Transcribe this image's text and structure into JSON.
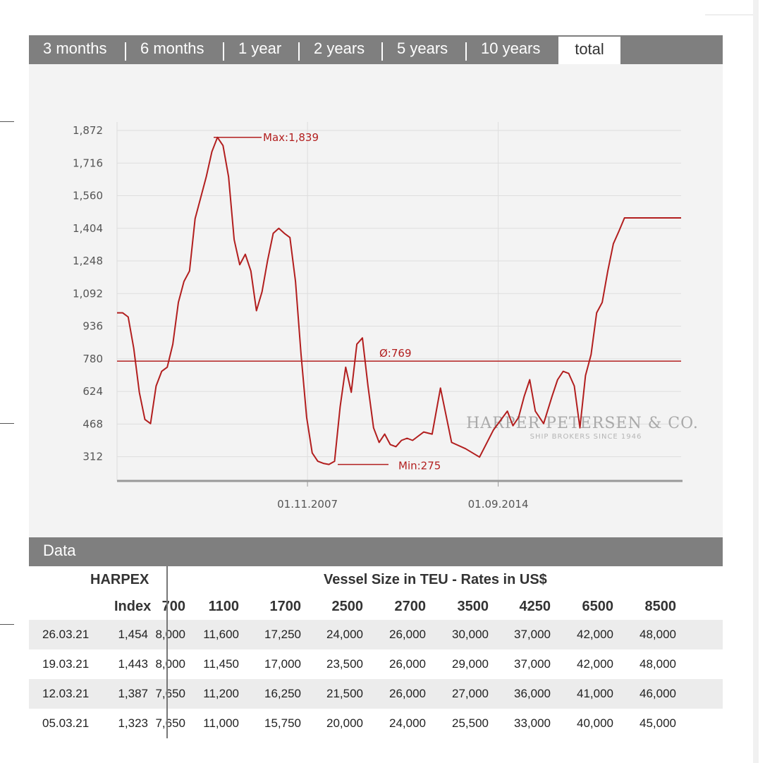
{
  "tabs": [
    {
      "label": "3 months"
    },
    {
      "label": "6 months"
    },
    {
      "label": "1 year"
    },
    {
      "label": "2 years"
    },
    {
      "label": "5 years"
    },
    {
      "label": "10 years"
    },
    {
      "label": "total",
      "active": true
    }
  ],
  "chart_data": {
    "type": "line",
    "y_ticks": [
      1872,
      1716,
      1560,
      1404,
      1248,
      1092,
      936,
      780,
      624,
      468,
      312
    ],
    "y_tick_labels": [
      "1,872",
      "1,716",
      "1,560",
      "1,404",
      "1,248",
      "1,092",
      "936",
      "780",
      "624",
      "468",
      "312"
    ],
    "x_tick_labels": [
      "01.11.2007",
      "01.09.2014"
    ],
    "ylim": [
      196,
      1872
    ],
    "grid": true,
    "annotations": {
      "max_label": "Max:1,839",
      "max": 1839,
      "min_label": "Min:275",
      "min": 275,
      "mean_label": "Ø:769",
      "mean": 769
    },
    "watermark": {
      "line1": "HARPER PETERSEN & CO.",
      "line2": "SHIP BROKERS SINCE 1946"
    },
    "colors": {
      "line": "#b21e1e",
      "grid": "#dedede",
      "axis": "#999999"
    },
    "series": [
      {
        "x": [
          2001.0,
          2001.2,
          2001.4,
          2001.6,
          2001.8,
          2002.0,
          2002.2,
          2002.4,
          2002.6,
          2002.8,
          2003.0,
          2003.2,
          2003.4,
          2003.6,
          2003.8,
          2004.0,
          2004.2,
          2004.4,
          2004.6,
          2004.8,
          2005.0,
          2005.2,
          2005.4,
          2005.6,
          2005.8,
          2006.0,
          2006.2,
          2006.4,
          2006.6,
          2006.8,
          2007.0,
          2007.2,
          2007.4,
          2007.6,
          2007.8,
          2008.0,
          2008.2,
          2008.4,
          2008.6,
          2008.8,
          2009.0,
          2009.2,
          2009.4,
          2009.6,
          2009.8,
          2010.0,
          2010.2,
          2010.4,
          2010.6,
          2010.8,
          2011.0,
          2011.2,
          2011.4,
          2011.6,
          2011.8,
          2012.0,
          2012.3,
          2012.6,
          2013.0,
          2013.5,
          2014.0,
          2014.5,
          2015.0,
          2015.2,
          2015.4,
          2015.6,
          2015.8,
          2016.0,
          2016.3,
          2016.6,
          2016.8,
          2017.0,
          2017.2,
          2017.4,
          2017.6,
          2017.8,
          2018.0,
          2018.2,
          2018.4,
          2018.6,
          2018.8,
          2019.0,
          2019.2,
          2019.4,
          2019.6,
          2019.8,
          2020.0,
          2020.2,
          2020.4,
          2020.6,
          2020.8,
          2021.0,
          2021.23
        ],
        "y": [
          1000,
          1000,
          980,
          830,
          620,
          490,
          470,
          650,
          720,
          740,
          850,
          1050,
          1150,
          1200,
          1450,
          1550,
          1650,
          1770,
          1839,
          1800,
          1650,
          1350,
          1230,
          1280,
          1200,
          1010,
          1100,
          1250,
          1380,
          1404,
          1380,
          1360,
          1150,
          800,
          500,
          330,
          290,
          280,
          275,
          290,
          550,
          740,
          620,
          850,
          880,
          650,
          450,
          380,
          420,
          370,
          360,
          390,
          400,
          390,
          410,
          430,
          420,
          640,
          380,
          350,
          310,
          440,
          530,
          460,
          500,
          600,
          680,
          530,
          470,
          600,
          680,
          720,
          710,
          650,
          450,
          700,
          800,
          1000,
          1050,
          1200,
          1330,
          1390,
          1454,
          1454,
          1454,
          1454,
          1454,
          1454,
          1454,
          1454,
          1454,
          1454,
          1454
        ]
      }
    ]
  },
  "data_section": {
    "title": "Data",
    "col_group_harpex": "HARPEX",
    "col_group_vessels": "Vessel Size in TEU - Rates in US$",
    "col_index": "Index",
    "teu_cols": [
      "700",
      "1100",
      "1700",
      "2500",
      "2700",
      "3500",
      "4250",
      "6500",
      "8500"
    ],
    "rows": [
      {
        "date": "26.03.21",
        "index": "1,454",
        "rates": [
          "8,000",
          "11,600",
          "17,250",
          "24,000",
          "26,000",
          "30,000",
          "37,000",
          "42,000",
          "48,000"
        ]
      },
      {
        "date": "19.03.21",
        "index": "1,443",
        "rates": [
          "8,000",
          "11,450",
          "17,000",
          "23,500",
          "26,000",
          "29,000",
          "37,000",
          "42,000",
          "48,000"
        ]
      },
      {
        "date": "12.03.21",
        "index": "1,387",
        "rates": [
          "7,650",
          "11,200",
          "16,250",
          "21,500",
          "26,000",
          "27,000",
          "36,000",
          "41,000",
          "46,000"
        ]
      },
      {
        "date": "05.03.21",
        "index": "1,323",
        "rates": [
          "7,650",
          "11,000",
          "15,750",
          "20,000",
          "24,000",
          "25,500",
          "33,000",
          "40,000",
          "45,000"
        ]
      }
    ]
  }
}
